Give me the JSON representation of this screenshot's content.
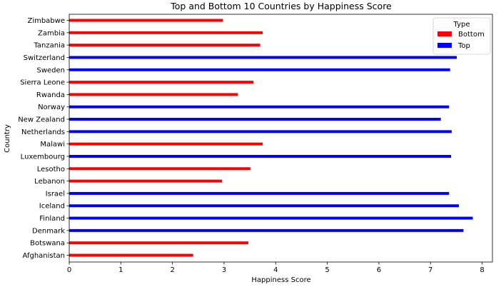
{
  "chart_data": {
    "type": "bar",
    "orientation": "horizontal",
    "title": "Top and Bottom 10 Countries by Happiness Score",
    "xlabel": "Happiness Score",
    "ylabel": "Country",
    "xlim": [
      0,
      8.2
    ],
    "xticks": [
      0,
      1,
      2,
      3,
      4,
      5,
      6,
      7,
      8
    ],
    "grid": false,
    "legend": {
      "title": "Type",
      "placement": "top-right",
      "entries": [
        {
          "name": "Bottom",
          "color": "#ff0000"
        },
        {
          "name": "Top",
          "color": "#0000ff"
        }
      ]
    },
    "categories": [
      "Zimbabwe",
      "Zambia",
      "Tanzania",
      "Switzerland",
      "Sweden",
      "Sierra Leone",
      "Rwanda",
      "Norway",
      "New Zealand",
      "Netherlands",
      "Malawi",
      "Luxembourg",
      "Lesotho",
      "Lebanon",
      "Israel",
      "Iceland",
      "Finland",
      "Denmark",
      "Botswana",
      "Afghanistan"
    ],
    "series": [
      {
        "name": "Bottom",
        "color": "#ff0000",
        "values": [
          2.98,
          3.75,
          3.7,
          null,
          null,
          3.57,
          3.27,
          null,
          null,
          null,
          3.75,
          null,
          3.51,
          2.96,
          null,
          null,
          null,
          null,
          3.47,
          2.4
        ]
      },
      {
        "name": "Top",
        "color": "#0000ff",
        "values": [
          null,
          null,
          null,
          7.51,
          7.38,
          null,
          null,
          7.36,
          7.2,
          7.41,
          null,
          7.4,
          null,
          null,
          7.36,
          7.55,
          7.82,
          7.64,
          null,
          null
        ]
      }
    ]
  }
}
